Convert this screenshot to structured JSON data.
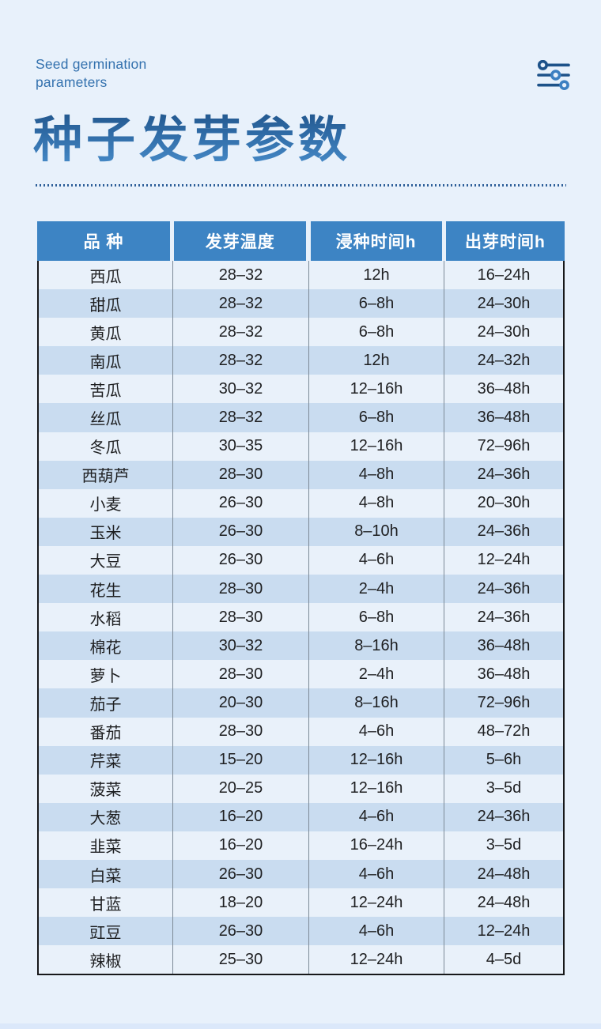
{
  "header": {
    "subtitle_en": "Seed germination\nparameters",
    "title": "种子发芽参数",
    "icon": "sliders-icon"
  },
  "colors": {
    "page_background": "#e8f1fb",
    "table_header": "#3d84c4",
    "row_light": "#e9f1fa",
    "row_dark": "#c9dcf0",
    "title_gradient_top": "#1b4c80",
    "title_gradient_bottom": "#4a8fcd",
    "subtitle_blue": "#3371ae",
    "icon_dark_blue": "#1d5289",
    "icon_light_blue": "#3c80c2"
  },
  "table": {
    "columns": [
      "品 种",
      "发芽温度",
      "浸种时间h",
      "出芽时间h"
    ],
    "rows": [
      [
        "西瓜",
        "28–32",
        "12h",
        "16–24h"
      ],
      [
        "甜瓜",
        "28–32",
        "6–8h",
        "24–30h"
      ],
      [
        "黄瓜",
        "28–32",
        "6–8h",
        "24–30h"
      ],
      [
        "南瓜",
        "28–32",
        "12h",
        "24–32h"
      ],
      [
        "苦瓜",
        "30–32",
        "12–16h",
        "36–48h"
      ],
      [
        "丝瓜",
        "28–32",
        "6–8h",
        "36–48h"
      ],
      [
        "冬瓜",
        "30–35",
        "12–16h",
        "72–96h"
      ],
      [
        "西葫芦",
        "28–30",
        "4–8h",
        "24–36h"
      ],
      [
        "小麦",
        "26–30",
        "4–8h",
        "20–30h"
      ],
      [
        "玉米",
        "26–30",
        "8–10h",
        "24–36h"
      ],
      [
        "大豆",
        "26–30",
        "4–6h",
        "12–24h"
      ],
      [
        "花生",
        "28–30",
        "2–4h",
        "24–36h"
      ],
      [
        "水稻",
        "28–30",
        "6–8h",
        "24–36h"
      ],
      [
        "棉花",
        "30–32",
        "8–16h",
        "36–48h"
      ],
      [
        "萝卜",
        "28–30",
        "2–4h",
        "36–48h"
      ],
      [
        "茄子",
        "20–30",
        "8–16h",
        "72–96h"
      ],
      [
        "番茄",
        "28–30",
        "4–6h",
        "48–72h"
      ],
      [
        "芹菜",
        "15–20",
        "12–16h",
        "5–6h"
      ],
      [
        "菠菜",
        "20–25",
        "12–16h",
        "3–5d"
      ],
      [
        "大葱",
        "16–20",
        "4–6h",
        "24–36h"
      ],
      [
        "韭菜",
        "16–20",
        "16–24h",
        "3–5d"
      ],
      [
        "白菜",
        "26–30",
        "4–6h",
        "24–48h"
      ],
      [
        "甘蓝",
        "18–20",
        "12–24h",
        "24–48h"
      ],
      [
        "豇豆",
        "26–30",
        "4–6h",
        "12–24h"
      ],
      [
        "辣椒",
        "25–30",
        "12–24h",
        "4–5d"
      ]
    ]
  }
}
